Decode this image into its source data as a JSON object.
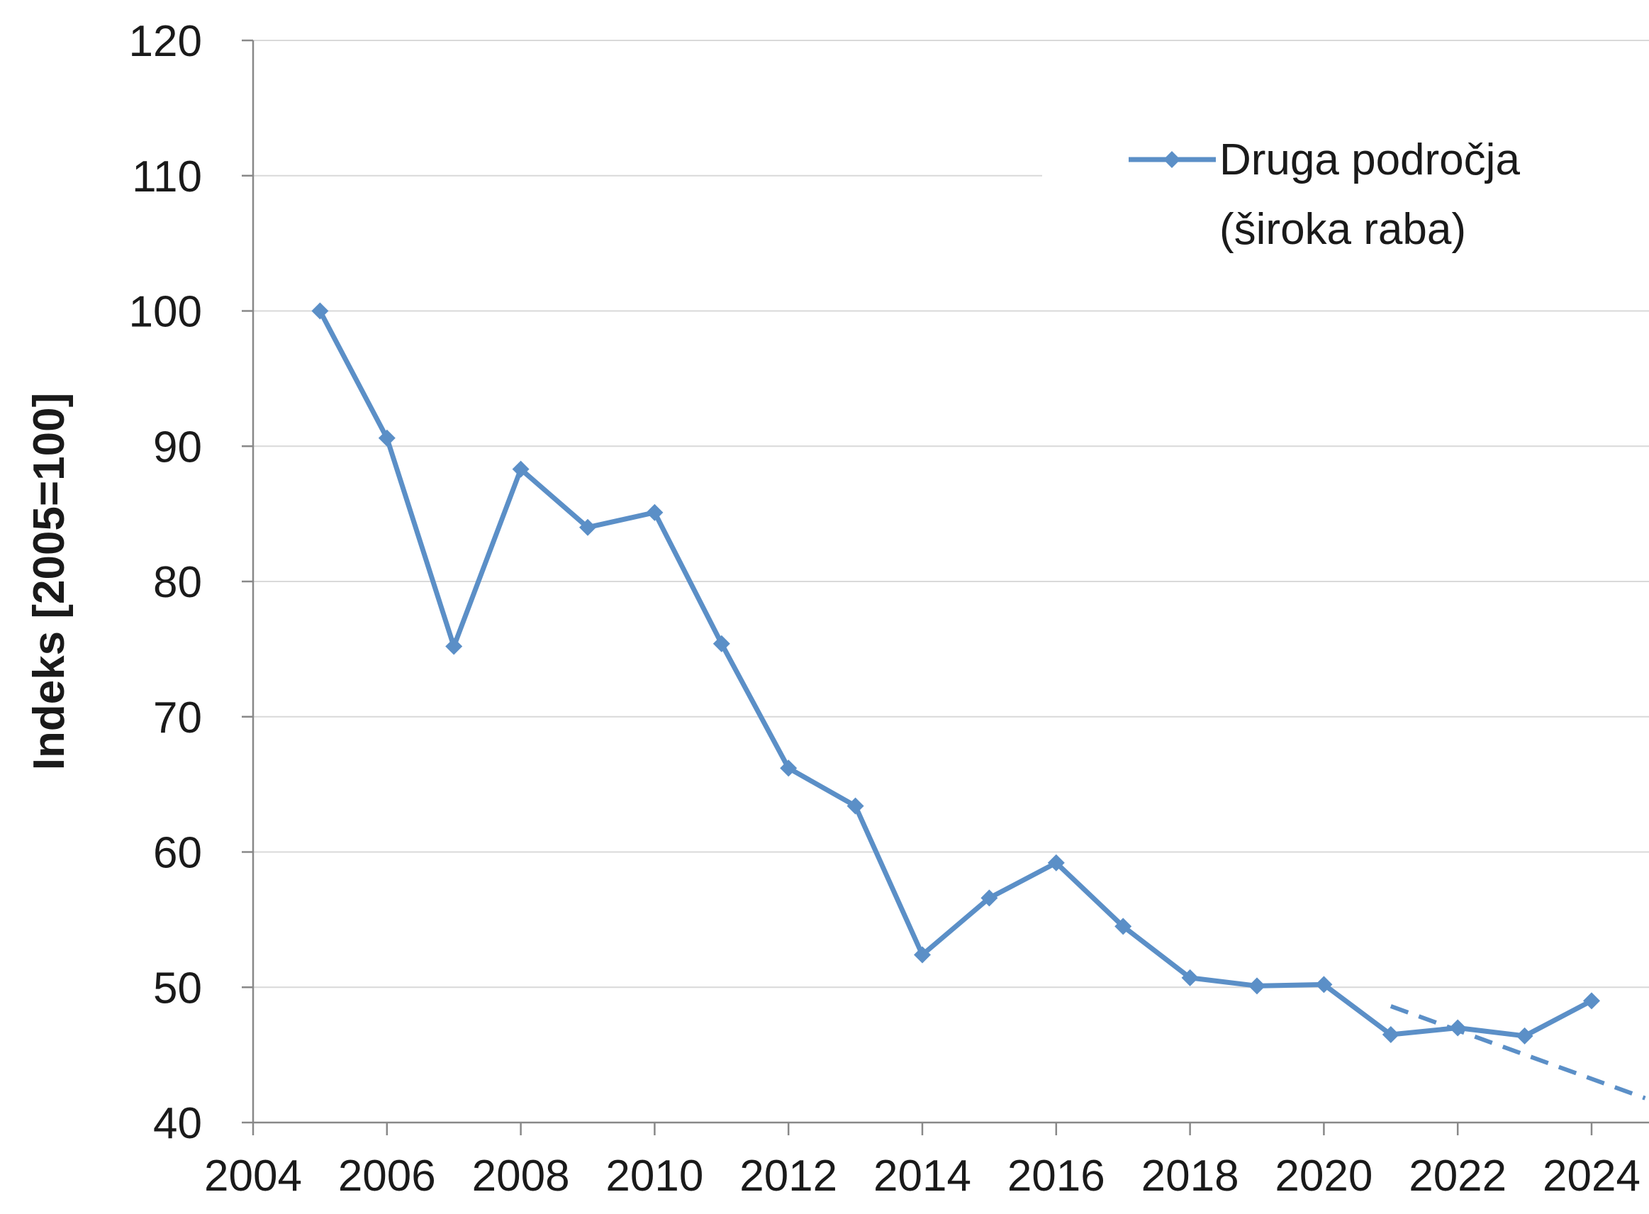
{
  "chart_data": {
    "type": "line",
    "title": "",
    "xlabel": "",
    "ylabel": "Indeks [2005=100]",
    "xlim": [
      2004,
      2024
    ],
    "ylim": [
      40,
      120
    ],
    "x_ticks": [
      2004,
      2006,
      2008,
      2010,
      2012,
      2014,
      2016,
      2018,
      2020,
      2022,
      2024
    ],
    "y_ticks": [
      40,
      50,
      60,
      70,
      80,
      90,
      100,
      110,
      120
    ],
    "grid": "horizontal",
    "legend_position": "top-right",
    "series": [
      {
        "name_lines": [
          "Druga področja",
          "(široka raba)"
        ],
        "color": "#5b8fc7",
        "marker": "diamond",
        "x": [
          2005,
          2006,
          2007,
          2008,
          2009,
          2010,
          2011,
          2012,
          2013,
          2014,
          2015,
          2016,
          2017,
          2018,
          2019,
          2020,
          2021,
          2022,
          2023,
          2024
        ],
        "y": [
          100,
          90.6,
          75.2,
          88.3,
          84,
          85.1,
          75.4,
          66.2,
          63.4,
          52.4,
          56.6,
          59.2,
          54.5,
          50.7,
          50.1,
          50.2,
          46.5,
          47,
          46.4,
          49
        ]
      }
    ],
    "trend": {
      "style": "dashed",
      "color": "#5b8fc7",
      "x": [
        2021,
        2024.8
      ],
      "y": [
        48.6,
        41.8
      ]
    }
  }
}
